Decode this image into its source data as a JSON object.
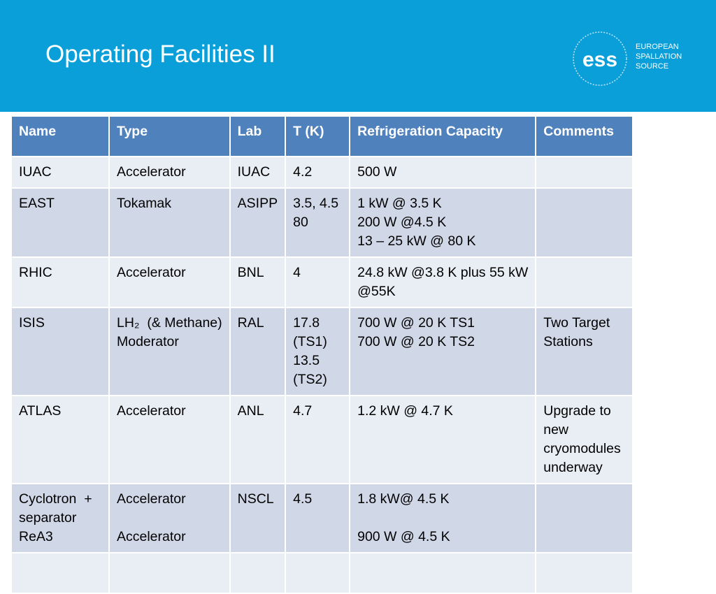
{
  "header": {
    "title": "Operating Facilities II",
    "logo": {
      "mark": "ess",
      "lines": [
        "EUROPEAN",
        "SPALLATION",
        "SOURCE"
      ]
    }
  },
  "table": {
    "columns": [
      "Name",
      "Type",
      "Lab",
      "T (K)",
      "Refrigeration Capacity",
      "Comments"
    ],
    "rows": [
      [
        [
          "IUAC"
        ],
        [
          "Accelerator"
        ],
        [
          "IUAC"
        ],
        [
          "4.2"
        ],
        [
          "500 W"
        ],
        []
      ],
      [
        [
          "EAST"
        ],
        [
          "Tokamak"
        ],
        [
          "ASIPP"
        ],
        [
          "3.5, 4.5",
          "80"
        ],
        [
          "1 kW @ 3.5 K",
          "200 W @4.5 K",
          "13 – 25 kW @ 80 K"
        ],
        []
      ],
      [
        [
          "RHIC"
        ],
        [
          "Accelerator"
        ],
        [
          "BNL"
        ],
        [
          "4"
        ],
        [
          "24.8 kW @3.8 K plus 55 kW",
          "@55K"
        ],
        []
      ],
      [
        [
          "ISIS"
        ],
        [
          "LH₂  (& Methane)",
          "Moderator"
        ],
        [
          "RAL"
        ],
        [
          "17.8",
          "(TS1)",
          "13.5",
          "(TS2)"
        ],
        [
          "700 W @ 20 K TS1",
          "700 W @ 20 K TS2"
        ],
        [
          "Two Target",
          "Stations"
        ]
      ],
      [
        [
          "ATLAS"
        ],
        [
          "Accelerator"
        ],
        [
          "ANL"
        ],
        [
          "4.7"
        ],
        [
          "1.2 kW @ 4.7 K"
        ],
        [
          "Upgrade to",
          "new",
          "cryomodules",
          "underway"
        ]
      ],
      [
        [
          "Cyclotron  +",
          "separator",
          "ReA3"
        ],
        [
          "Accelerator",
          "Accelerator"
        ],
        [
          "NSCL"
        ],
        [
          "4.5"
        ],
        [
          "1.8 kW@ 4.5 K",
          "900 W @ 4.5 K"
        ],
        []
      ]
    ]
  }
}
